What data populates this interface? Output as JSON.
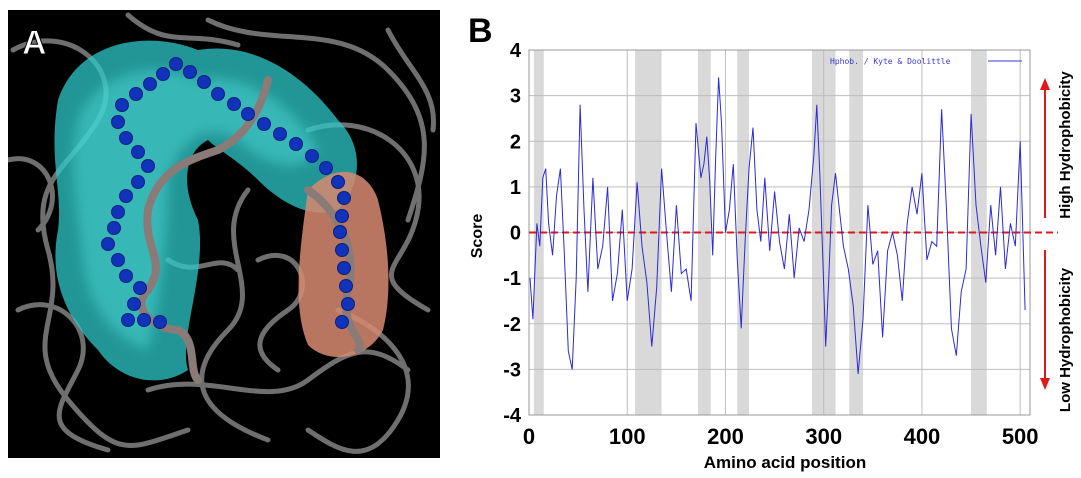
{
  "panel_a": {
    "label": "A"
  },
  "panel_b": {
    "label": "B"
  },
  "chart_data": {
    "type": "line",
    "title": "",
    "xlabel": "Amino acid position",
    "ylabel": "Score",
    "xlim": [
      0,
      510
    ],
    "ylim": [
      -4,
      4
    ],
    "xticks": [
      "0",
      "100",
      "200",
      "300",
      "400",
      "500"
    ],
    "yticks": [
      "4",
      "3",
      "2",
      "1",
      "0",
      "-1",
      "-2",
      "-3",
      "-4"
    ],
    "legend": {
      "text": "Hphob. / Kyte & Doolittle",
      "position": "top-right"
    },
    "right_labels": {
      "high": "High Hydrophobicity",
      "low": "Low Hydrophobicity"
    },
    "colors": {
      "series": "#2b2bd8",
      "zero_line": "#e01818",
      "band": "#d9d9d9",
      "arrow": "#e01818"
    },
    "shaded_regions": [
      [
        5,
        15
      ],
      [
        108,
        135
      ],
      [
        172,
        185
      ],
      [
        212,
        224
      ],
      [
        288,
        312
      ],
      [
        326,
        340
      ],
      [
        450,
        466
      ]
    ],
    "series": [
      {
        "x": [
          1,
          4,
          8,
          11,
          14,
          17,
          20,
          24,
          28,
          32,
          36,
          40,
          44,
          48,
          52,
          56,
          60,
          65,
          70,
          75,
          80,
          85,
          90,
          95,
          100,
          105,
          110,
          115,
          120,
          125,
          130,
          135,
          140,
          145,
          150,
          155,
          160,
          165,
          170,
          175,
          178,
          181,
          184,
          187,
          190,
          193,
          196,
          200,
          204,
          208,
          212,
          216,
          220,
          224,
          228,
          232,
          236,
          240,
          245,
          250,
          255,
          260,
          265,
          270,
          275,
          280,
          285,
          290,
          293,
          296,
          299,
          302,
          305,
          308,
          312,
          316,
          320,
          325,
          330,
          335,
          340,
          345,
          350,
          355,
          360,
          365,
          370,
          375,
          380,
          385,
          390,
          395,
          400,
          405,
          410,
          415,
          420,
          425,
          430,
          435,
          440,
          445,
          450,
          455,
          460,
          465,
          470,
          475,
          480,
          485,
          490,
          495,
          500,
          505
        ],
        "values": [
          -1.0,
          -1.9,
          0.2,
          -0.3,
          1.2,
          1.4,
          0.2,
          -0.5,
          0.8,
          1.4,
          -0.5,
          -2.6,
          -3.0,
          -1.0,
          2.8,
          0.5,
          -1.3,
          1.2,
          -0.8,
          -0.3,
          1.0,
          -1.5,
          -0.9,
          0.5,
          -1.5,
          -0.8,
          1.1,
          -0.3,
          -1.1,
          -2.5,
          -1.2,
          1.4,
          0.0,
          -1.3,
          0.6,
          -0.9,
          -0.8,
          -1.5,
          2.4,
          1.2,
          1.5,
          2.1,
          1.1,
          -0.5,
          1.6,
          3.4,
          2.4,
          0.0,
          0.5,
          1.5,
          -0.6,
          -2.1,
          -0.2,
          1.4,
          2.3,
          0.5,
          -0.2,
          1.2,
          -0.4,
          0.9,
          -0.2,
          -0.8,
          0.4,
          -1.0,
          0.1,
          -0.2,
          0.5,
          1.7,
          2.8,
          1.3,
          -0.5,
          -2.5,
          -1.1,
          0.6,
          1.3,
          0.5,
          -0.3,
          -0.8,
          -1.6,
          -3.1,
          -1.9,
          0.6,
          -0.7,
          -0.4,
          -2.3,
          -0.4,
          0.0,
          -0.5,
          -1.5,
          0.2,
          1.0,
          0.4,
          1.3,
          -0.6,
          -0.2,
          -0.3,
          2.7,
          0.5,
          -2.1,
          -2.7,
          -1.3,
          -0.8,
          2.6,
          0.6,
          -0.3,
          -1.1,
          0.6,
          -0.5,
          1.0,
          -0.8,
          0.2,
          -0.3,
          2.0,
          -1.7
        ]
      }
    ]
  }
}
